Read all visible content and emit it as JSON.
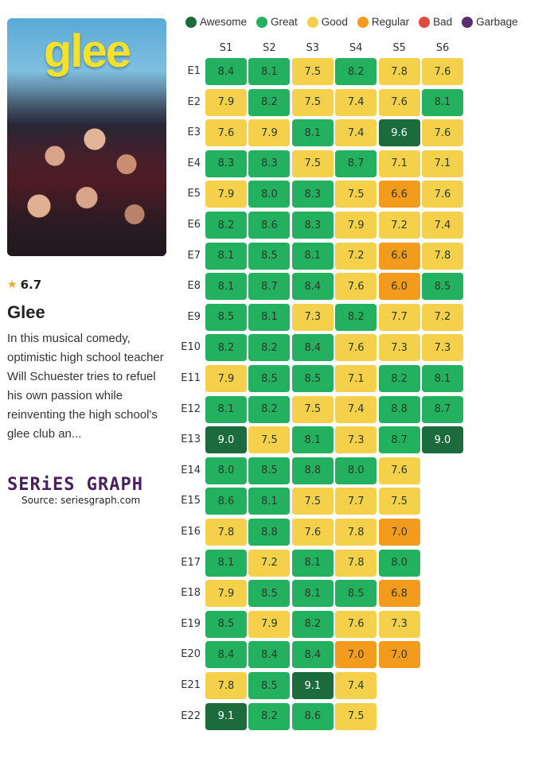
{
  "show": {
    "rating": "6.7",
    "title": "Glee",
    "description": "In this musical comedy, optimistic high school teacher Will Schuester tries to refuel his own passion while reinventing the high school's glee club an...",
    "poster_logo": "glee"
  },
  "branding": {
    "logo": "SERiES GRAPH",
    "source": "Source: seriesgraph.com"
  },
  "legend": [
    {
      "label": "Awesome",
      "color": "#1b6b3d"
    },
    {
      "label": "Great",
      "color": "#23b15f"
    },
    {
      "label": "Good",
      "color": "#f4d04b"
    },
    {
      "label": "Regular",
      "color": "#f29b1c"
    },
    {
      "label": "Bad",
      "color": "#e4493f"
    },
    {
      "label": "Garbage",
      "color": "#5a2d6e"
    }
  ],
  "chart_data": {
    "type": "heatmap",
    "columns": [
      "S1",
      "S2",
      "S3",
      "S4",
      "S5",
      "S6"
    ],
    "rows": [
      "E1",
      "E2",
      "E3",
      "E4",
      "E5",
      "E6",
      "E7",
      "E8",
      "E9",
      "E10",
      "E11",
      "E12",
      "E13",
      "E14",
      "E15",
      "E16",
      "E17",
      "E18",
      "E19",
      "E20",
      "E21",
      "E22"
    ],
    "values": [
      [
        8.4,
        8.1,
        7.5,
        8.2,
        7.8,
        7.6
      ],
      [
        7.9,
        8.2,
        7.5,
        7.4,
        7.6,
        8.1
      ],
      [
        7.6,
        7.9,
        8.1,
        7.4,
        9.6,
        7.6
      ],
      [
        8.3,
        8.3,
        7.5,
        8.7,
        7.1,
        7.1
      ],
      [
        7.9,
        8.0,
        8.3,
        7.5,
        6.6,
        7.6
      ],
      [
        8.2,
        8.6,
        8.3,
        7.9,
        7.2,
        7.4
      ],
      [
        8.1,
        8.5,
        8.1,
        7.2,
        6.6,
        7.8
      ],
      [
        8.1,
        8.7,
        8.4,
        7.6,
        6.0,
        8.5
      ],
      [
        8.5,
        8.1,
        7.3,
        8.2,
        7.7,
        7.2
      ],
      [
        8.2,
        8.2,
        8.4,
        7.6,
        7.3,
        7.3
      ],
      [
        7.9,
        8.5,
        8.5,
        7.1,
        8.2,
        8.1
      ],
      [
        8.1,
        8.2,
        7.5,
        7.4,
        8.8,
        8.7
      ],
      [
        9.0,
        7.5,
        8.1,
        7.3,
        8.7,
        9.0
      ],
      [
        8.0,
        8.5,
        8.8,
        8.0,
        7.6,
        null
      ],
      [
        8.6,
        8.1,
        7.5,
        7.7,
        7.5,
        null
      ],
      [
        7.8,
        8.8,
        7.6,
        7.8,
        7.0,
        null
      ],
      [
        8.1,
        7.2,
        8.1,
        7.8,
        8.0,
        null
      ],
      [
        7.9,
        8.5,
        8.1,
        8.5,
        6.8,
        null
      ],
      [
        8.5,
        7.9,
        8.2,
        7.6,
        7.3,
        null
      ],
      [
        8.4,
        8.4,
        8.4,
        7.0,
        7.0,
        null
      ],
      [
        7.8,
        8.5,
        9.1,
        7.4,
        null,
        null
      ],
      [
        9.1,
        8.2,
        8.6,
        7.5,
        null,
        null
      ]
    ]
  }
}
